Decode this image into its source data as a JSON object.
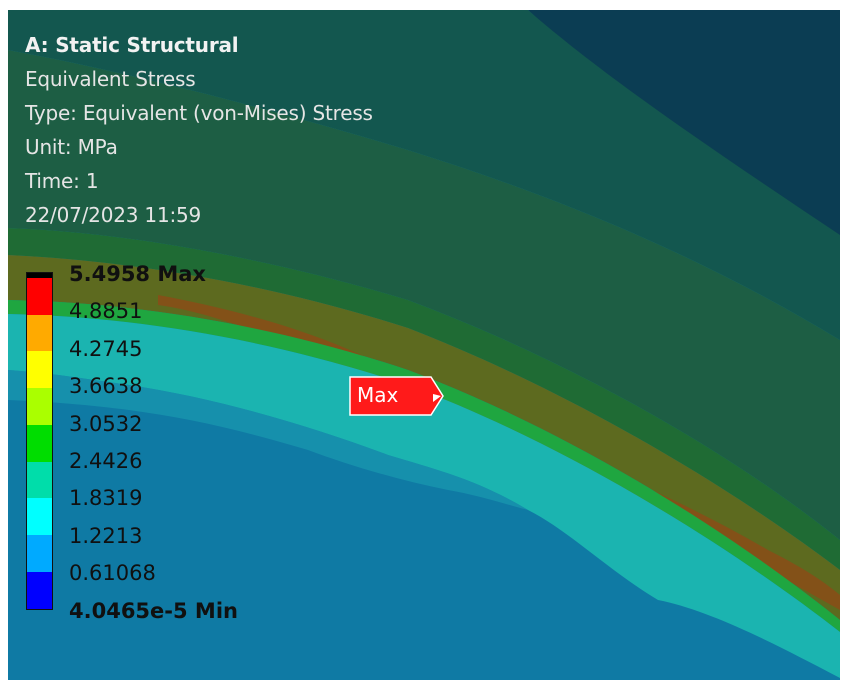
{
  "header": {
    "title": "A: Static Structural",
    "result_name": "Equivalent Stress",
    "type_line": "Type: Equivalent (von-Mises) Stress",
    "unit_line": "Unit: MPa",
    "time_line": "Time: 1",
    "timestamp": "22/07/2023 11:59"
  },
  "legend": {
    "levels": [
      {
        "label": "5.4958 Max",
        "color": "#000000"
      },
      {
        "label": "4.8851",
        "color": "#ff0000"
      },
      {
        "label": "4.2745",
        "color": "#ffaa00"
      },
      {
        "label": "3.6638",
        "color": "#ffff00"
      },
      {
        "label": "3.0532",
        "color": "#aaff00"
      },
      {
        "label": "2.4426",
        "color": "#00dd00"
      },
      {
        "label": "1.8319",
        "color": "#00ddaa"
      },
      {
        "label": "1.2213",
        "color": "#00ffff"
      },
      {
        "label": "0.61068",
        "color": "#00aaff"
      },
      {
        "label": "4.0465e-5 Min",
        "color": "#0000ff"
      }
    ]
  },
  "probe": {
    "label": "Max",
    "color": "#ff1a1a"
  },
  "colors": {
    "background_dark": "#0b3d53",
    "shell_green": "#1f5f46",
    "band_green": "#1f7a2d",
    "band_olive": "#6b6b1a",
    "hot_band": "#8a4a1a",
    "cyan_band": "#1bb3b0",
    "base_blue": "#0f7aa4"
  }
}
